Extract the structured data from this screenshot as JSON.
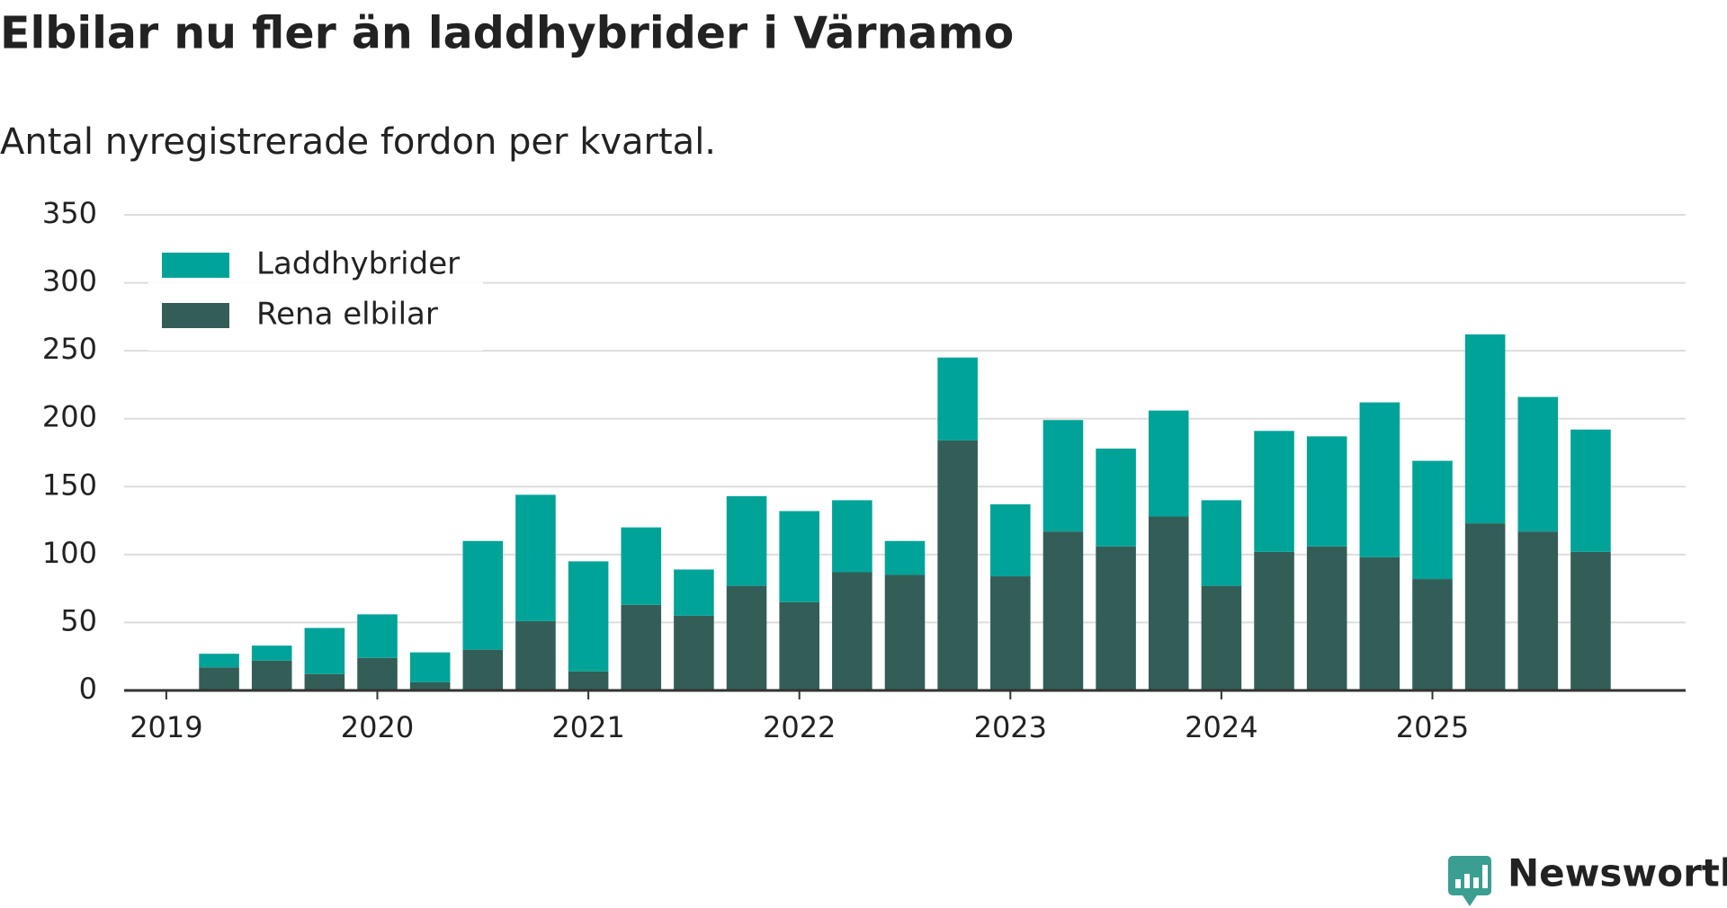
{
  "chart_data": {
    "type": "stacked_bar",
    "title": "Elbilar nu fler än laddhybrider i Värnamo",
    "subtitle": "Antal nyregistrerade fordon per kvartal.",
    "x": [
      2019.25,
      2019.5,
      2019.75,
      2020,
      2020.25,
      2020.5,
      2020.75,
      2021,
      2021.25,
      2021.5,
      2021.75,
      2022,
      2022.25,
      2022.5,
      2022.75,
      2023,
      2023.25,
      2023.5,
      2023.75,
      2024,
      2024.25,
      2024.5,
      2024.75,
      2025,
      2025.25,
      2025.5,
      2025.75
    ],
    "series": [
      {
        "name": "Rena elbilar",
        "color": "#335e57",
        "values": [
          17,
          22,
          12,
          24,
          6,
          30,
          51,
          14,
          63,
          55,
          77,
          65,
          87,
          85,
          184,
          84,
          117,
          106,
          128,
          77,
          102,
          106,
          98,
          82,
          123,
          117,
          102
        ]
      },
      {
        "name": "Laddhybrider",
        "color": "#00a398",
        "values": [
          10,
          11,
          34,
          32,
          22,
          80,
          93,
          81,
          57,
          34,
          66,
          67,
          53,
          25,
          61,
          53,
          82,
          72,
          78,
          63,
          89,
          81,
          114,
          87,
          139,
          99,
          90
        ]
      }
    ],
    "xlim": [
      2018.8,
      2026.2
    ],
    "xticks": [
      2019,
      2020,
      2021,
      2022,
      2023,
      2024,
      2025
    ],
    "ylim": [
      0,
      350
    ],
    "yticks": [
      0,
      50,
      100,
      150,
      200,
      250,
      300,
      350
    ],
    "grid": true,
    "legend": "top-left",
    "brand": "Newsworthy"
  }
}
